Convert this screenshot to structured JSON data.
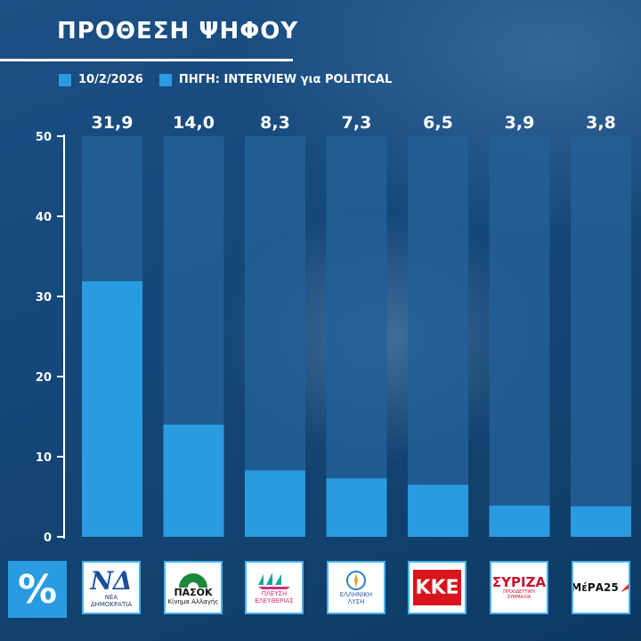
{
  "header": {
    "title": "ΠΡΟΘΕΣΗ ΨΗΦΟΥ"
  },
  "legend": {
    "date": "10/2/2026",
    "source": "ΠΗΓΗ: INTERVIEW για POLITICAL"
  },
  "unit_label": "%",
  "colors": {
    "bar": "#2a9be0",
    "bar_track": "#235f96",
    "text": "#ffffff"
  },
  "chart_data": {
    "type": "bar",
    "categories": [
      "ΝΔ",
      "ΠΑΣΟΚ",
      "ΠΛΕΥΣΗ ΕΛΕΥΘΕΡΙΑΣ",
      "ΕΛΛΗΝΙΚΗ ΛΥΣΗ",
      "ΚΚΕ",
      "ΣΥΡΙΖΑ",
      "ΜέΡΑ25"
    ],
    "values": [
      31.9,
      14.0,
      8.3,
      7.3,
      6.5,
      3.9,
      3.8
    ],
    "value_labels": [
      "31,9",
      "14,0",
      "8,3",
      "7,3",
      "6,5",
      "3,9",
      "3,8"
    ],
    "yticks": [
      "0",
      "10",
      "20",
      "30",
      "40",
      "50"
    ],
    "ylim": [
      0,
      50
    ],
    "grid": false
  },
  "logos": [
    {
      "icon": "nd-logo",
      "text": "ΝΔ",
      "caption": "ΝΕΑ ΔΗΜΟΚΡΑΤΙΑ"
    },
    {
      "icon": "pasok-logo",
      "text": "ΠΑΣΟΚ",
      "caption": "Κίνημα Αλλαγής"
    },
    {
      "icon": "plefsi-logo",
      "text": "ΠΛΕΥΣΗ",
      "caption": "ΕΛΕΥΘΕΡΙΑΣ"
    },
    {
      "icon": "elliniki-lysi-logo",
      "text": "ΕΛΛΗΝΙΚΗ",
      "caption": "ΛΥΣΗ"
    },
    {
      "icon": "kke-logo",
      "text": "ΚΚΕ",
      "caption": ""
    },
    {
      "icon": "syriza-logo",
      "text": "ΣΥΡΙΖΑ",
      "caption": "ΠΡΟΟΔΕΥΤΙΚΗ ΣΥΜΜΑΧΙΑ"
    },
    {
      "icon": "mera25-logo",
      "text": "ΜέΡΑ25",
      "caption": ""
    }
  ]
}
